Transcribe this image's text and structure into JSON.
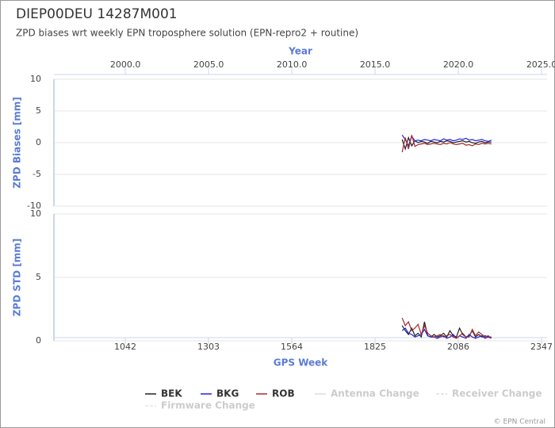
{
  "header": {
    "title": "DIEP00DEU 14287M001",
    "subtitle": "ZPD biases wrt weekly EPN troposphere solution (EPN-repro2 + routine)"
  },
  "credits": "© EPN Central",
  "legend_extra": [
    {
      "name": "Antenna Change",
      "color": "#dddddd",
      "dash": "solid"
    },
    {
      "name": "Receiver Change",
      "color": "#dddddd",
      "dash": "dashed"
    },
    {
      "name": "Firmware Change",
      "color": "#e6e6e6",
      "dash": "dashed"
    }
  ],
  "chart_data": [
    {
      "type": "line",
      "y_label": "ZPD Biases [mm]",
      "x2_label": "Year",
      "grid": true,
      "x": [
        1910,
        1920,
        1930,
        1940,
        1950,
        1960,
        1970,
        1980,
        1990,
        2000,
        2010,
        2020,
        2030,
        2040,
        2050,
        2060,
        2070,
        2080,
        2090,
        2100,
        2110,
        2120,
        2130,
        2140,
        2150,
        2160,
        2170,
        2180,
        2190
      ],
      "xlim": [
        818.3,
        2364.4
      ],
      "ylim": [
        -10,
        10
      ],
      "yticks": [
        -10,
        -5,
        0,
        5,
        10
      ],
      "x2lim": [
        1995.71,
        2025.33
      ],
      "x2ticks": [
        {
          "value": 2000,
          "label": "2000.0"
        },
        {
          "value": 2005,
          "label": "2005.0"
        },
        {
          "value": 2010,
          "label": "2010.0"
        },
        {
          "value": 2015,
          "label": "2015.0"
        },
        {
          "value": 2020,
          "label": "2020.0"
        },
        {
          "value": 2025,
          "label": "2025.0"
        }
      ],
      "series": [
        {
          "name": "BEK",
          "color": "#222222",
          "values": [
            0.5,
            -1,
            0.8,
            -0.5,
            0.3,
            0,
            0.2,
            0.1,
            -0.1,
            0.2,
            0.1,
            0,
            0.2,
            0.1,
            0.3,
            0.2,
            0,
            0.1,
            0.2,
            0.3,
            0.1,
            0.2,
            0,
            -0.1,
            0.1,
            0.2,
            0,
            0.1,
            0.1
          ]
        },
        {
          "name": "BKG",
          "color": "#2222dd",
          "values": [
            1.2,
            0.5,
            -0.5,
            1,
            0.3,
            0.4,
            0.3,
            0.5,
            0.4,
            0.3,
            0.5,
            0.4,
            0.3,
            0.6,
            0.4,
            0.5,
            0.3,
            0.4,
            0.6,
            0.5,
            0.7,
            0.4,
            0.5,
            0.3,
            0.4,
            0.5,
            0.3,
            0.2,
            0.4
          ]
        },
        {
          "name": "ROB",
          "color": "#a52a2a",
          "values": [
            -1.5,
            0.8,
            -1,
            1.2,
            -0.6,
            -0.3,
            -0.2,
            -0.1,
            -0.3,
            -0.2,
            -0.1,
            -0.2,
            -0.3,
            -0.1,
            -0.2,
            0,
            -0.2,
            -0.3,
            -0.2,
            -0.1,
            -0.4,
            -0.3,
            -0.5,
            -0.2,
            -0.3,
            -0.1,
            -0.2,
            -0.1,
            -0.2
          ]
        }
      ]
    },
    {
      "type": "line",
      "y_label": "ZPD STD [mm]",
      "x_label": "GPS Week",
      "grid": true,
      "x": [
        1910,
        1920,
        1930,
        1940,
        1950,
        1960,
        1970,
        1980,
        1990,
        2000,
        2010,
        2020,
        2030,
        2040,
        2050,
        2060,
        2070,
        2080,
        2090,
        2100,
        2110,
        2120,
        2130,
        2140,
        2150,
        2160,
        2170,
        2180,
        2190
      ],
      "xlim": [
        818.3,
        2364.4
      ],
      "xticks": [
        1042,
        1303,
        1564,
        1825,
        2086,
        2347
      ],
      "ylim": [
        0,
        10
      ],
      "yticks": [
        0,
        5,
        10
      ],
      "series": [
        {
          "name": "BEK",
          "color": "#222222",
          "values": [
            1.2,
            0.8,
            0.5,
            1,
            0.4,
            0.6,
            0.3,
            1.5,
            0.4,
            0.3,
            0.5,
            0.3,
            0.4,
            0.6,
            0.3,
            0.8,
            0.4,
            0.3,
            1,
            0.5,
            0.3,
            0.4,
            0.8,
            0.3,
            0.5,
            0.3,
            0.4,
            0.3,
            0.3
          ]
        },
        {
          "name": "BKG",
          "color": "#2222dd",
          "values": [
            0.8,
            1,
            0.6,
            0.5,
            0.3,
            0.4,
            0.5,
            0.9,
            0.4,
            0.3,
            0.3,
            0.2,
            0.3,
            0.4,
            0.2,
            0.3,
            0.5,
            0.2,
            0.4,
            0.3,
            0.2,
            0.5,
            0.3,
            0.2,
            0.3,
            0.4,
            0.2,
            0.3,
            0.2
          ]
        },
        {
          "name": "ROB",
          "color": "#a52a2a",
          "values": [
            1.8,
            1.2,
            1.5,
            0.8,
            1,
            1.3,
            0.5,
            1.2,
            0.6,
            0.4,
            0.3,
            0.4,
            0.5,
            0.3,
            0.4,
            0.5,
            0.3,
            0.2,
            0.4,
            0.6,
            0.3,
            0.3,
            0.9,
            0.4,
            0.7,
            0.5,
            0.3,
            0.4,
            0.2
          ]
        }
      ]
    }
  ]
}
